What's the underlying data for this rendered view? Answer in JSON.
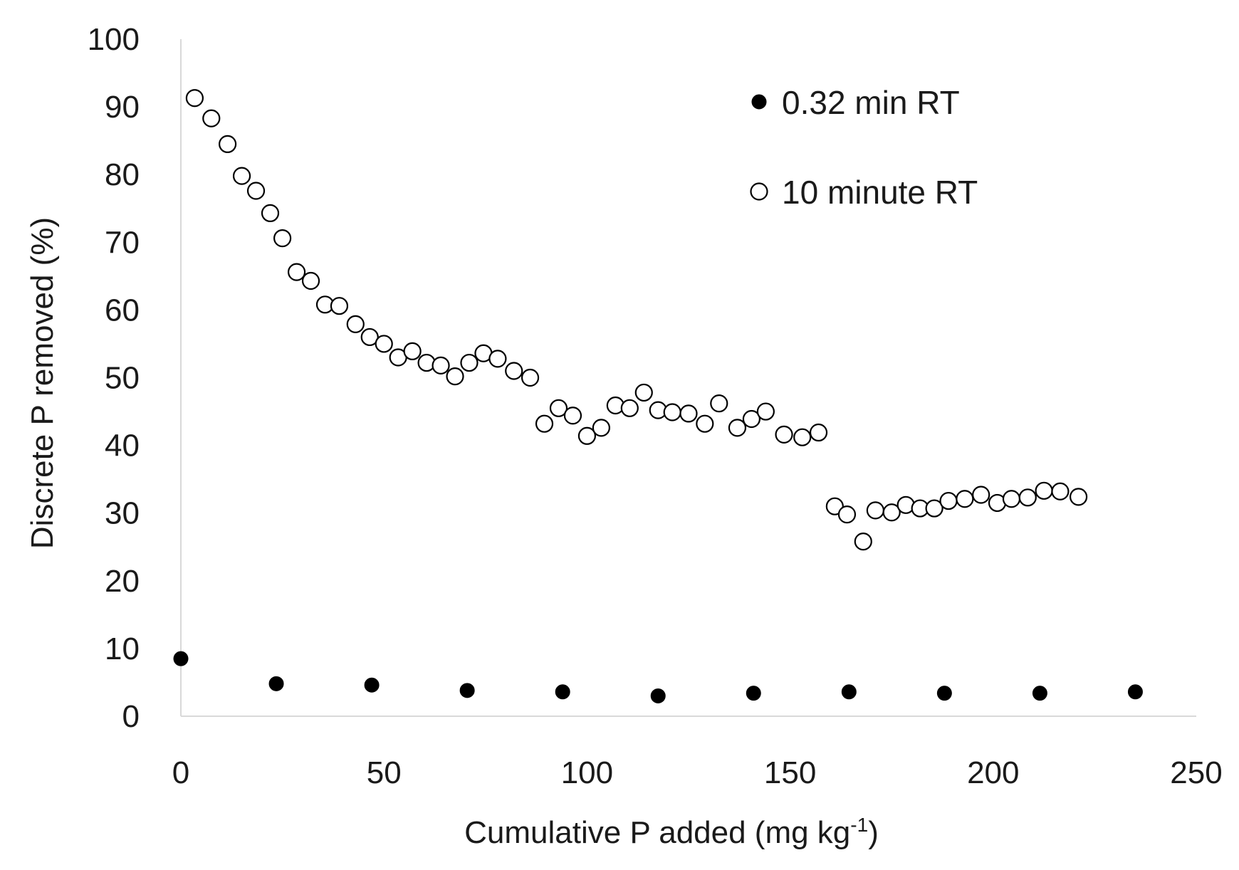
{
  "chart_data": {
    "type": "scatter",
    "title": "",
    "xlabel": "Cumulative P added (mg kg",
    "xlabel_sup": "-1",
    "xlabel_close": ")",
    "ylabel": "Discrete P removed (%)",
    "xlim": [
      0,
      250
    ],
    "ylim": [
      0,
      100
    ],
    "xticks": [
      0,
      50,
      100,
      150,
      200,
      250
    ],
    "yticks": [
      0,
      10,
      20,
      30,
      40,
      50,
      60,
      70,
      80,
      90,
      100
    ],
    "grid": false,
    "legend_position": "top-right",
    "series": [
      {
        "name": "0.32 min RT",
        "marker": "filled-circle",
        "color": "#000000",
        "x": [
          0,
          23.5,
          47,
          70.5,
          94,
          117.5,
          141,
          164.5,
          188,
          211.5,
          235
        ],
        "y": [
          8.5,
          4.8,
          4.6,
          3.8,
          3.6,
          3.0,
          3.4,
          3.6,
          3.4,
          3.4,
          3.6
        ]
      },
      {
        "name": "10 minute RT",
        "marker": "open-circle",
        "color": "#000000",
        "x": [
          3.4,
          7.5,
          11.5,
          15,
          18.5,
          22,
          25,
          28.5,
          32,
          35.5,
          39,
          43,
          46.5,
          50,
          53.5,
          57,
          60.5,
          64,
          67.5,
          71,
          74.5,
          78,
          82,
          86,
          89.5,
          93,
          96.5,
          100,
          103.5,
          107,
          110.5,
          114,
          117.5,
          121,
          125,
          129,
          132.5,
          137,
          140.5,
          144,
          148.5,
          153,
          157,
          161,
          164,
          168,
          171,
          175,
          178.5,
          182,
          185.5,
          189,
          193,
          197,
          201,
          204.5,
          208.5,
          212.5,
          216.5,
          221
        ],
        "y": [
          91.3,
          88.3,
          84.5,
          79.8,
          77.6,
          74.3,
          70.6,
          65.6,
          64.3,
          60.8,
          60.6,
          57.9,
          56.0,
          55.0,
          53.0,
          53.9,
          52.2,
          51.8,
          50.2,
          52.2,
          53.6,
          52.8,
          51.0,
          50.0,
          43.2,
          45.5,
          44.4,
          41.4,
          42.6,
          45.9,
          45.5,
          47.8,
          45.2,
          44.9,
          44.7,
          43.2,
          46.2,
          42.6,
          43.9,
          45.0,
          41.6,
          41.2,
          41.9,
          31.0,
          29.8,
          25.8,
          30.4,
          30.1,
          31.2,
          30.7,
          30.7,
          31.8,
          32.1,
          32.7,
          31.5,
          32.1,
          32.3,
          33.3,
          33.2,
          32.4
        ]
      }
    ]
  }
}
